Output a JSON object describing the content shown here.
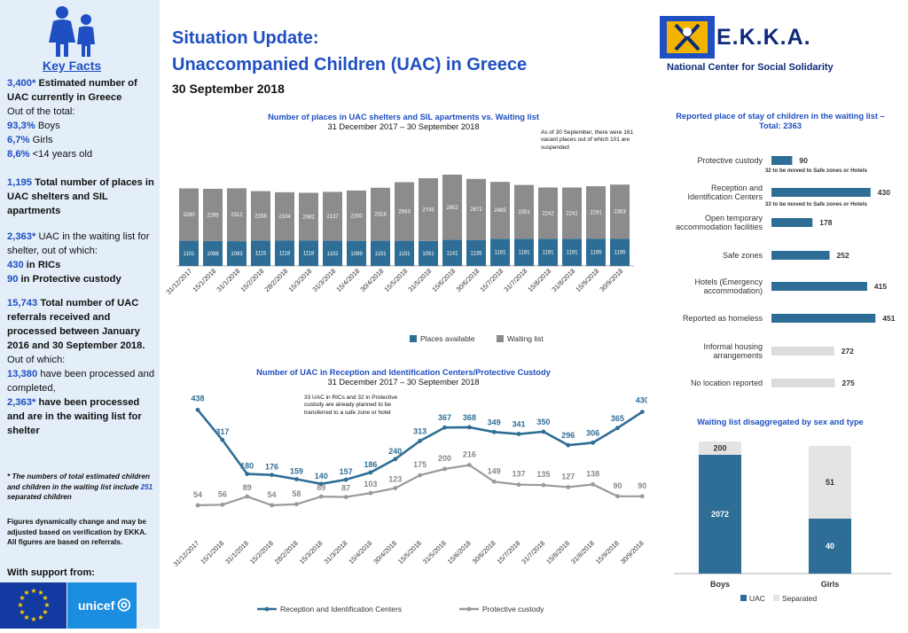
{
  "header": {
    "title_line1": "Situation Update:",
    "title_line2": "Unaccompanied Children (UAC) in Greece",
    "date": "30 September 2018",
    "org_name": "E.K.K.A.",
    "org_full": "National Center for Social Solidarity"
  },
  "sidebar": {
    "key_facts": "Key Facts",
    "f1_num": "3,400*",
    "f1_txt": " Estimated number of UAC currently in Greece",
    "f1_out": "Out of the total:",
    "f1_boys_num": "93,3%",
    "f1_boys": " Boys",
    "f1_girls_num": "6,7%",
    "f1_girls": " Girls",
    "f1_u14_num": "8,6%",
    "f1_u14": " <14 years old",
    "f2_num": "1,195",
    "f2_txt": " Total number of places in UAC shelters and SIL apartments",
    "f3_num": "2,363*",
    "f3_txt": " UAC in the waiting list for shelter, out of which:",
    "f3_ric_num": "430",
    "f3_ric": " in RICs",
    "f3_pc_num": "90",
    "f3_pc": " in Protective custody",
    "f4_num": "15,743",
    "f4_txt": " Total number of UAC referrals received and processed between January 2016 and 30 September 2018.",
    "f4_out": "Out of which:",
    "f4_a_num": "13,380",
    "f4_a": " have been processed and completed,",
    "f4_b_num": "2,363*",
    "f4_b": " have been processed and are in the waiting list for shelter",
    "note_pre": "* The numbers of total estimated children and children in the waiting list include ",
    "note_num": "251",
    "note_post": " separated children",
    "disclaimer": "Figures dynamically change and may be adjusted based on verification by EKKA. All figures are based on referrals.",
    "support": "With support from:",
    "unicef": "unicef"
  },
  "chart_data": [
    {
      "type": "bar",
      "title": "Number of places in UAC shelters and SIL apartments vs. Waiting list",
      "subtitle": "31 December 2017 – 30 September 2018",
      "annotation": "As of 30 September, there were 161 vacant places out of which 101 are suspended",
      "categories": [
        "31/12/2017",
        "15/1/2018",
        "31/1/2018",
        "15/2/2018",
        "28/2/2018",
        "15/3/2018",
        "31/3/2018",
        "15/4/2018",
        "30/4/2018",
        "15/5/2018",
        "31/5/2018",
        "15/6/2018",
        "30/6/2018",
        "15/7/2018",
        "31/7/2018",
        "15/8/2018",
        "31/8/2018",
        "15/9/2018",
        "30/9/2018"
      ],
      "series": [
        {
          "name": "Places available",
          "color": "#2e6e96",
          "values": [
            1101,
            1088,
            1083,
            1115,
            1118,
            1118,
            1102,
            1099,
            1101,
            1101,
            1091,
            1141,
            1135,
            1191,
            1191,
            1191,
            1191,
            1195,
            1195
          ]
        },
        {
          "name": "Waiting list",
          "color": "#8c8c8c",
          "values": [
            2290,
            2285,
            2312,
            2158,
            2104,
            2082,
            2137,
            2200,
            2318,
            2563,
            2745,
            2852,
            2672,
            2485,
            2351,
            2242,
            2241,
            2291,
            2363
          ]
        }
      ],
      "stacked": true,
      "legend": "bottom"
    },
    {
      "type": "line",
      "title": "Number of UAC in Reception and Identification Centers/Protective Custody",
      "subtitle": "31 December 2017 – 30 September 2018",
      "annotation": "33 UAC in RICs and 32 in Protective custody are already planned to be transferred to a safe zone or hotel",
      "categories": [
        "31/12/2017",
        "15/1/2018",
        "31/1/2018",
        "15/2/2018",
        "28/2/2018",
        "15/3/2018",
        "31/3/2018",
        "15/4/2018",
        "30/4/2018",
        "15/5/2018",
        "31/5/2018",
        "15/6/2018",
        "30/6/2018",
        "15/7/2018",
        "31/7/2018",
        "15/8/2018",
        "31/8/2018",
        "15/9/2018",
        "30/9/2018"
      ],
      "series": [
        {
          "name": "Reception and Identification Centers",
          "color": "#2e6e96",
          "values": [
            438,
            317,
            180,
            176,
            159,
            140,
            157,
            186,
            240,
            313,
            367,
            368,
            349,
            341,
            350,
            296,
            306,
            365,
            430
          ]
        },
        {
          "name": "Protective custody",
          "color": "#9a9a9a",
          "values": [
            54,
            56,
            89,
            54,
            58,
            89,
            87,
            103,
            123,
            175,
            200,
            216,
            149,
            137,
            135,
            127,
            138,
            90,
            90
          ]
        }
      ],
      "legend": "bottom"
    },
    {
      "type": "bar",
      "orientation": "horizontal",
      "title": "Reported place of stay of children in the waiting list – Total: 2363",
      "categories": [
        "Protective custody",
        "Reception and Identification Centers",
        "Open temporary accommodation facilities",
        "Safe zones",
        "Hotels (Emergency accommodation)",
        "Reported as homeless",
        "Informal housing arrangements",
        "No location reported"
      ],
      "values": [
        90,
        430,
        178,
        252,
        415,
        451,
        272,
        275
      ],
      "colors": [
        "#2e6e96",
        "#2e6e96",
        "#2e6e96",
        "#2e6e96",
        "#2e6e96",
        "#2e6e96",
        "#dcdcdc",
        "#dcdcdc"
      ],
      "notes": [
        "32 to be moved to Safe zones or Hotels",
        "33 to be moved to Safe zones or Hotels"
      ]
    },
    {
      "type": "bar",
      "title": "Waiting list disaggregated by sex and type",
      "categories": [
        "Boys",
        "Girls"
      ],
      "series": [
        {
          "name": "UAC",
          "color": "#2e6e96",
          "values": [
            2072,
            40
          ]
        },
        {
          "name": "Separated",
          "color": "#e4e4e4",
          "values": [
            200,
            51
          ]
        }
      ],
      "stacked": true,
      "legend": "bottom"
    }
  ]
}
